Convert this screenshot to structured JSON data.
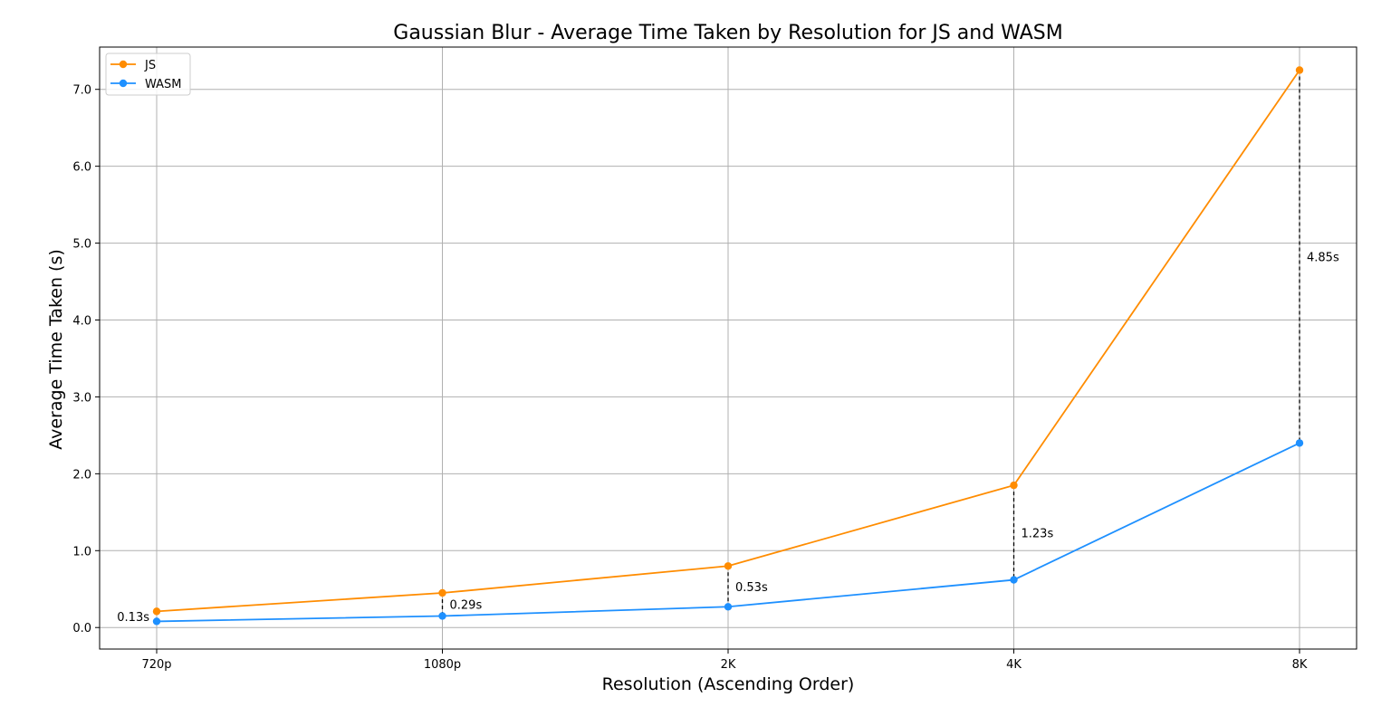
{
  "chart_data": {
    "type": "line",
    "title": "Gaussian Blur - Average Time Taken by Resolution for JS and WASM",
    "xlabel": "Resolution (Ascending Order)",
    "ylabel": "Average Time Taken (s)",
    "categories": [
      "720p",
      "1080p",
      "2K",
      "4K",
      "8K"
    ],
    "ylim": [
      -0.28,
      7.55
    ],
    "yticks": [
      0.0,
      1.0,
      2.0,
      3.0,
      4.0,
      5.0,
      6.0,
      7.0
    ],
    "ytick_labels": [
      "0.0",
      "1.0",
      "2.0",
      "3.0",
      "4.0",
      "5.0",
      "6.0",
      "7.0"
    ],
    "grid": true,
    "legend_position": "top-left",
    "series": [
      {
        "name": "JS",
        "color": "#ff8c00",
        "values": [
          0.21,
          0.45,
          0.8,
          1.85,
          7.25
        ]
      },
      {
        "name": "WASM",
        "color": "#1e90ff",
        "values": [
          0.08,
          0.15,
          0.27,
          0.62,
          2.4
        ]
      }
    ],
    "annotations": [
      "0.13s",
      "0.29s",
      "0.53s",
      "1.23s",
      "4.85s"
    ]
  }
}
